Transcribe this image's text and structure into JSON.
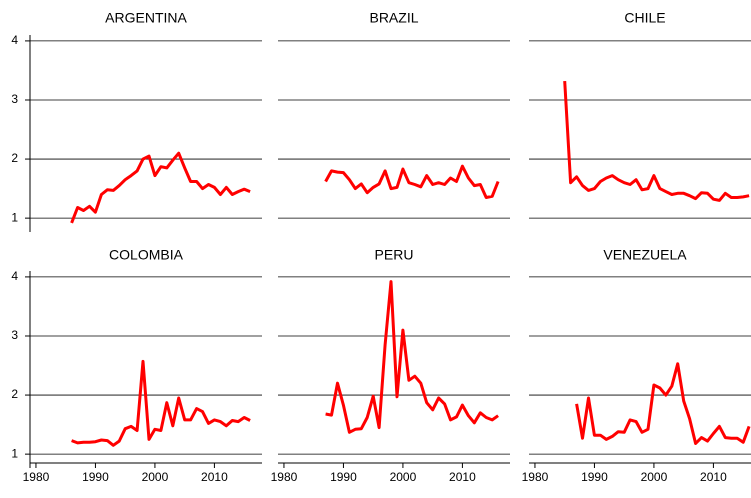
{
  "chart_data": [
    {
      "type": "line",
      "title": "ARGENTINA",
      "color": "#ff0000",
      "grid": true,
      "xlim": [
        1979,
        2018
      ],
      "ylim": [
        0.85,
        4.1
      ],
      "yticks": [
        1,
        2,
        3,
        4
      ],
      "x": [
        1986,
        1987,
        1988,
        1989,
        1990,
        1991,
        1992,
        1993,
        1994,
        1995,
        1996,
        1997,
        1998,
        1999,
        2000,
        2001,
        2002,
        2003,
        2004,
        2005,
        2006,
        2007,
        2008,
        2009,
        2010,
        2011,
        2012,
        2013,
        2014,
        2015,
        2016
      ],
      "values": [
        0.92,
        1.18,
        1.13,
        1.2,
        1.1,
        1.4,
        1.48,
        1.47,
        1.55,
        1.65,
        1.72,
        1.8,
        2.0,
        2.05,
        1.72,
        1.87,
        1.85,
        1.98,
        2.1,
        1.85,
        1.62,
        1.62,
        1.5,
        1.57,
        1.52,
        1.4,
        1.52,
        1.4,
        1.45,
        1.49,
        1.45
      ]
    },
    {
      "type": "line",
      "title": "BRAZIL",
      "color": "#ff0000",
      "grid": true,
      "xlim": [
        1979,
        2018
      ],
      "ylim": [
        0.85,
        4.1
      ],
      "yticks": [
        1,
        2,
        3,
        4
      ],
      "x": [
        1987,
        1988,
        1989,
        1990,
        1991,
        1992,
        1993,
        1994,
        1995,
        1996,
        1997,
        1998,
        1999,
        2000,
        2001,
        2002,
        2003,
        2004,
        2005,
        2006,
        2007,
        2008,
        2009,
        2010,
        2011,
        2012,
        2013,
        2014,
        2015,
        2016
      ],
      "values": [
        1.62,
        1.8,
        1.78,
        1.77,
        1.65,
        1.5,
        1.58,
        1.43,
        1.52,
        1.58,
        1.8,
        1.5,
        1.52,
        1.83,
        1.6,
        1.57,
        1.53,
        1.72,
        1.57,
        1.6,
        1.57,
        1.68,
        1.62,
        1.88,
        1.68,
        1.55,
        1.57,
        1.35,
        1.37,
        1.62
      ]
    },
    {
      "type": "line",
      "title": "CHILE",
      "color": "#ff0000",
      "grid": true,
      "xlim": [
        1979,
        2018
      ],
      "ylim": [
        0.85,
        4.1
      ],
      "yticks": [
        1,
        2,
        3,
        4
      ],
      "x": [
        1985,
        1986,
        1987,
        1988,
        1989,
        1990,
        1991,
        1992,
        1993,
        1994,
        1995,
        1996,
        1997,
        1998,
        1999,
        2000,
        2001,
        2002,
        2003,
        2004,
        2005,
        2006,
        2007,
        2008,
        2009,
        2010,
        2011,
        2012,
        2013,
        2014,
        2015,
        2016
      ],
      "values": [
        3.32,
        1.6,
        1.7,
        1.55,
        1.47,
        1.5,
        1.62,
        1.68,
        1.72,
        1.65,
        1.6,
        1.57,
        1.65,
        1.48,
        1.5,
        1.72,
        1.5,
        1.45,
        1.4,
        1.42,
        1.42,
        1.38,
        1.33,
        1.43,
        1.42,
        1.32,
        1.3,
        1.42,
        1.35,
        1.35,
        1.36,
        1.38
      ]
    },
    {
      "type": "line",
      "title": "COLOMBIA",
      "color": "#ff0000",
      "grid": true,
      "xlim": [
        1979,
        2018
      ],
      "ylim": [
        0.85,
        4.1
      ],
      "yticks": [
        1,
        2,
        3,
        4
      ],
      "xticks": [
        1980,
        1990,
        2000,
        2010
      ],
      "x": [
        1986,
        1987,
        1988,
        1989,
        1990,
        1991,
        1992,
        1993,
        1994,
        1995,
        1996,
        1997,
        1998,
        1999,
        2000,
        2001,
        2002,
        2003,
        2004,
        2005,
        2006,
        2007,
        2008,
        2009,
        2010,
        2011,
        2012,
        2013,
        2014,
        2015,
        2016
      ],
      "values": [
        1.23,
        1.19,
        1.2,
        1.2,
        1.21,
        1.24,
        1.23,
        1.15,
        1.22,
        1.43,
        1.47,
        1.4,
        2.57,
        1.25,
        1.42,
        1.4,
        1.87,
        1.48,
        1.95,
        1.58,
        1.58,
        1.77,
        1.72,
        1.52,
        1.58,
        1.55,
        1.48,
        1.57,
        1.55,
        1.62,
        1.57
      ]
    },
    {
      "type": "line",
      "title": "PERU",
      "color": "#ff0000",
      "grid": true,
      "xlim": [
        1979,
        2018
      ],
      "ylim": [
        0.85,
        4.1
      ],
      "yticks": [
        1,
        2,
        3,
        4
      ],
      "xticks": [
        1980,
        1990,
        2000,
        2010
      ],
      "x": [
        1987,
        1988,
        1989,
        1990,
        1991,
        1992,
        1993,
        1994,
        1995,
        1996,
        1997,
        1998,
        1999,
        2000,
        2001,
        2002,
        2003,
        2004,
        2005,
        2006,
        2007,
        2008,
        2009,
        2010,
        2011,
        2012,
        2013,
        2014,
        2015,
        2016
      ],
      "values": [
        1.68,
        1.66,
        2.2,
        1.83,
        1.37,
        1.42,
        1.43,
        1.62,
        1.98,
        1.45,
        2.85,
        3.92,
        1.97,
        3.1,
        2.25,
        2.32,
        2.2,
        1.87,
        1.75,
        1.95,
        1.85,
        1.58,
        1.63,
        1.83,
        1.65,
        1.53,
        1.7,
        1.62,
        1.58,
        1.65
      ]
    },
    {
      "type": "line",
      "title": "VENEZUELA",
      "color": "#ff0000",
      "grid": true,
      "xlim": [
        1979,
        2018
      ],
      "ylim": [
        0.85,
        4.1
      ],
      "yticks": [
        1,
        2,
        3,
        4
      ],
      "xticks": [
        1980,
        1990,
        2000,
        2010
      ],
      "x": [
        1987,
        1988,
        1989,
        1990,
        1991,
        1992,
        1993,
        1994,
        1995,
        1996,
        1997,
        1998,
        1999,
        2000,
        2001,
        2002,
        2003,
        2004,
        2005,
        2006,
        2007,
        2008,
        2009,
        2010,
        2011,
        2012,
        2013,
        2014,
        2015,
        2016
      ],
      "values": [
        1.85,
        1.27,
        1.95,
        1.32,
        1.32,
        1.25,
        1.3,
        1.38,
        1.37,
        1.58,
        1.55,
        1.37,
        1.42,
        2.17,
        2.12,
        2.0,
        2.15,
        2.53,
        1.9,
        1.6,
        1.18,
        1.28,
        1.22,
        1.35,
        1.47,
        1.28,
        1.27,
        1.27,
        1.2,
        1.47
      ]
    }
  ]
}
